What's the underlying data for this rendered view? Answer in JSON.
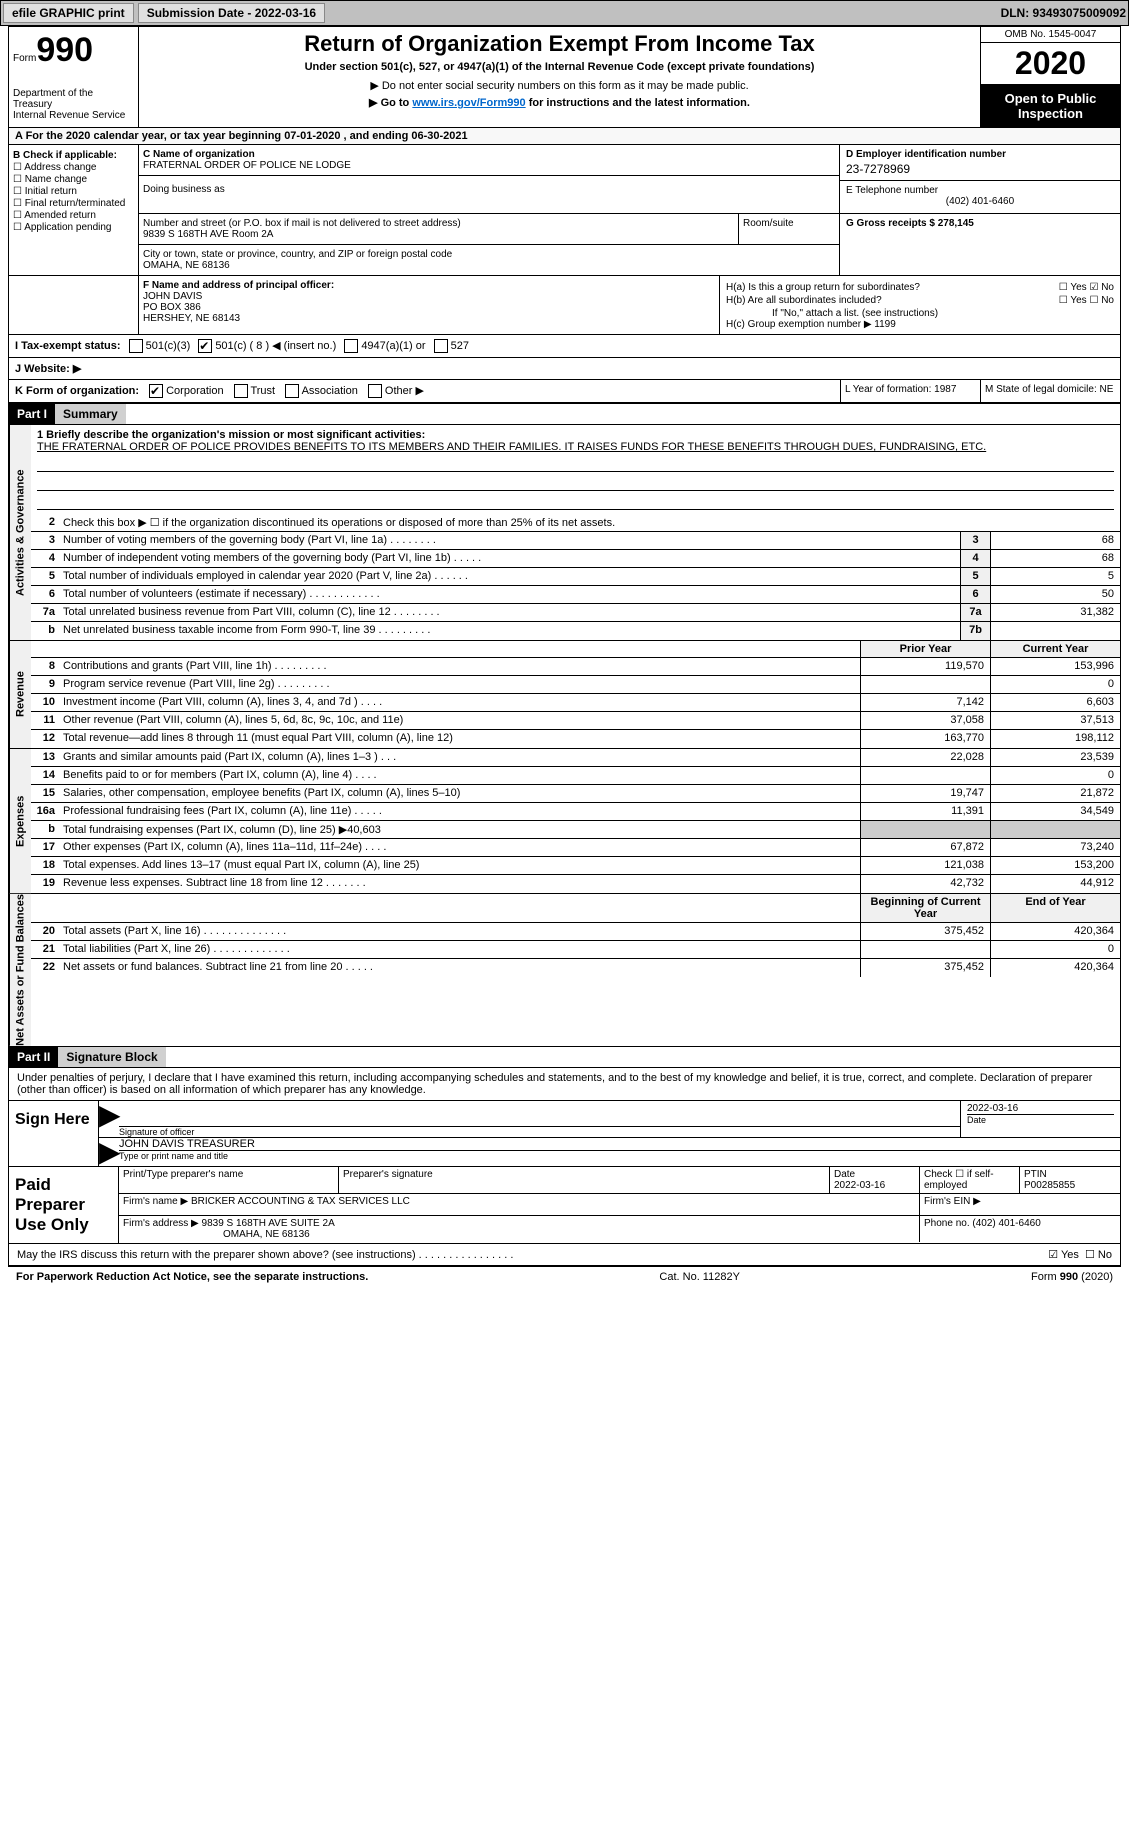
{
  "header": {
    "efile_btn": "efile GRAPHIC print",
    "submission_label": "Submission Date - 2022-03-16",
    "dln_label": "DLN: 93493075009092"
  },
  "top": {
    "form_word": "Form",
    "form_num": "990",
    "dept": "Department of the Treasury\nInternal Revenue Service",
    "title": "Return of Organization Exempt From Income Tax",
    "subtitle": "Under section 501(c), 527, or 4947(a)(1) of the Internal Revenue Code (except private foundations)",
    "instr1": "▶ Do not enter social security numbers on this form as it may be made public.",
    "instr2_pre": "▶ Go to ",
    "instr2_link": "www.irs.gov/Form990",
    "instr2_post": " for instructions and the latest information.",
    "omb": "OMB No. 1545-0047",
    "year": "2020",
    "open": "Open to Public Inspection"
  },
  "period": "A For the 2020 calendar year, or tax year beginning 07-01-2020   , and ending 06-30-2021",
  "b": {
    "hdr": "B Check if applicable:",
    "items": [
      "☐ Address change",
      "☐ Name change",
      "☐ Initial return",
      "☐ Final return/terminated",
      "☐ Amended return",
      "☐ Application pending"
    ]
  },
  "c": {
    "label": "C Name of organization",
    "name": "FRATERNAL ORDER OF POLICE NE LODGE",
    "dba_label": "Doing business as",
    "addr_label": "Number and street (or P.O. box if mail is not delivered to street address)",
    "addr": "9839 S 168TH AVE Room 2A",
    "room_label": "Room/suite",
    "city_label": "City or town, state or province, country, and ZIP or foreign postal code",
    "city": "OMAHA, NE  68136"
  },
  "d": {
    "label": "D Employer identification number",
    "val": "23-7278969"
  },
  "e": {
    "label": "E Telephone number",
    "val": "(402) 401-6460"
  },
  "g": {
    "label": "G Gross receipts $ 278,145"
  },
  "f": {
    "label": "F  Name and address of principal officer:",
    "name": "JOHN DAVIS",
    "addr1": "PO BOX 386",
    "addr2": "HERSHEY, NE  68143"
  },
  "h": {
    "ha": "H(a)  Is this a group return for subordinates?",
    "ha_yes": "☐ Yes",
    "ha_no": "☑ No",
    "hb": "H(b)  Are all subordinates included?",
    "hb_yes": "☐ Yes",
    "hb_no": "☐ No",
    "hb_note": "If \"No,\" attach a list. (see instructions)",
    "hc": "H(c)  Group exemption number ▶   1199"
  },
  "i": {
    "label": "I    Tax-exempt status:",
    "opts": [
      "501(c)(3)",
      "501(c) ( 8 ) ◀ (insert no.)",
      "4947(a)(1) or",
      "527"
    ],
    "checked_idx": 1
  },
  "j": {
    "label": "J    Website: ▶"
  },
  "k": {
    "label": "K Form of organization:",
    "opts": [
      "Corporation",
      "Trust",
      "Association",
      "Other ▶"
    ],
    "checked_idx": 0,
    "l": "L Year of formation: 1987",
    "m": "M State of legal domicile: NE"
  },
  "part1": {
    "hdr": "Part I",
    "title": "Summary",
    "line1_label": "1  Briefly describe the organization's mission or most significant activities:",
    "line1_text": "THE FRATERNAL ORDER OF POLICE PROVIDES BENEFITS TO ITS MEMBERS AND THEIR FAMILIES. IT RAISES FUNDS FOR THESE BENEFITS THROUGH DUES, FUNDRAISING, ETC.",
    "line2": "Check this box ▶ ☐ if the organization discontinued its operations or disposed of more than 25% of its net assets.",
    "governance_label": "Activities & Governance",
    "revenue_label": "Revenue",
    "expenses_label": "Expenses",
    "netassets_label": "Net Assets or Fund Balances",
    "gov_lines": [
      {
        "n": "3",
        "d": "Number of voting members of the governing body (Part VI, line 1a)  .    .    .    .    .    .    .    .",
        "b": "3",
        "v": "68"
      },
      {
        "n": "4",
        "d": "Number of independent voting members of the governing body (Part VI, line 1b)   .    .    .    .    .",
        "b": "4",
        "v": "68"
      },
      {
        "n": "5",
        "d": "Total number of individuals employed in calendar year 2020 (Part V, line 2a)   .    .    .    .    .    .",
        "b": "5",
        "v": "5"
      },
      {
        "n": "6",
        "d": "Total number of volunteers (estimate if necessary)   .    .    .    .    .    .    .    .    .    .    .    .",
        "b": "6",
        "v": "50"
      },
      {
        "n": "7a",
        "d": "Total unrelated business revenue from Part VIII, column (C), line 12   .    .    .    .    .    .    .    .",
        "b": "7a",
        "v": "31,382"
      },
      {
        "n": "b",
        "d": "Net unrelated business taxable income from Form 990-T, line 39   .    .    .    .    .    .    .    .    .",
        "b": "7b",
        "v": ""
      }
    ],
    "col_prior": "Prior Year",
    "col_current": "Current Year",
    "rev_lines": [
      {
        "n": "8",
        "d": "Contributions and grants (Part VIII, line 1h)   .    .    .    .    .    .    .    .    .",
        "p": "119,570",
        "c": "153,996"
      },
      {
        "n": "9",
        "d": "Program service revenue (Part VIII, line 2g)   .    .    .    .    .    .    .    .    .",
        "p": "",
        "c": "0"
      },
      {
        "n": "10",
        "d": "Investment income (Part VIII, column (A), lines 3, 4, and 7d )   .    .    .    .",
        "p": "7,142",
        "c": "6,603"
      },
      {
        "n": "11",
        "d": "Other revenue (Part VIII, column (A), lines 5, 6d, 8c, 9c, 10c, and 11e)",
        "p": "37,058",
        "c": "37,513"
      },
      {
        "n": "12",
        "d": "Total revenue—add lines 8 through 11 (must equal Part VIII, column (A), line 12)",
        "p": "163,770",
        "c": "198,112"
      }
    ],
    "exp_lines": [
      {
        "n": "13",
        "d": "Grants and similar amounts paid (Part IX, column (A), lines 1–3 )   .    .    .",
        "p": "22,028",
        "c": "23,539"
      },
      {
        "n": "14",
        "d": "Benefits paid to or for members (Part IX, column (A), line 4)   .    .    .    .",
        "p": "",
        "c": "0"
      },
      {
        "n": "15",
        "d": "Salaries, other compensation, employee benefits (Part IX, column (A), lines 5–10)",
        "p": "19,747",
        "c": "21,872"
      },
      {
        "n": "16a",
        "d": "Professional fundraising fees (Part IX, column (A), line 11e)   .    .    .    .    .",
        "p": "11,391",
        "c": "34,549"
      },
      {
        "n": "b",
        "d": "Total fundraising expenses (Part IX, column (D), line 25) ▶40,603",
        "p": "__SHADE__",
        "c": "__SHADE__"
      },
      {
        "n": "17",
        "d": "Other expenses (Part IX, column (A), lines 11a–11d, 11f–24e)   .    .    .    .",
        "p": "67,872",
        "c": "73,240"
      },
      {
        "n": "18",
        "d": "Total expenses. Add lines 13–17 (must equal Part IX, column (A), line 25)",
        "p": "121,038",
        "c": "153,200"
      },
      {
        "n": "19",
        "d": "Revenue less expenses. Subtract line 18 from line 12   .    .    .    .    .    .    .",
        "p": "42,732",
        "c": "44,912"
      }
    ],
    "net_header_p": "Beginning of Current Year",
    "net_header_c": "End of Year",
    "net_lines": [
      {
        "n": "20",
        "d": "Total assets (Part X, line 16)   .    .    .    .    .    .    .    .    .    .    .    .    .    .",
        "p": "375,452",
        "c": "420,364"
      },
      {
        "n": "21",
        "d": "Total liabilities (Part X, line 26)   .    .    .    .    .    .    .    .    .    .    .    .    .",
        "p": "",
        "c": "0"
      },
      {
        "n": "22",
        "d": "Net assets or fund balances. Subtract line 21 from line 20   .    .    .    .    .",
        "p": "375,452",
        "c": "420,364"
      }
    ]
  },
  "part2": {
    "hdr": "Part II",
    "title": "Signature Block",
    "intro": "Under penalties of perjury, I declare that I have examined this return, including accompanying schedules and statements, and to the best of my knowledge and belief, it is true, correct, and complete. Declaration of preparer (other than officer) is based on all information of which preparer has any knowledge.",
    "sign_here": "Sign Here",
    "sig_officer_lbl": "Signature of officer",
    "sig_date": "2022-03-16",
    "date_lbl": "Date",
    "name_title": "JOHN DAVIS TREASURER",
    "name_title_lbl": "Type or print name and title",
    "paid_label": "Paid Preparer Use Only",
    "prep_headers": [
      "Print/Type preparer's name",
      "Preparer's signature",
      "Date",
      "Check ☐ if self-employed",
      "PTIN"
    ],
    "prep_vals": [
      "",
      "",
      "2022-03-16",
      "",
      "P00285855"
    ],
    "firm_name_lbl": "Firm's name    ▶",
    "firm_name": "BRICKER ACCOUNTING & TAX SERVICES LLC",
    "firm_ein_lbl": "Firm's EIN ▶",
    "firm_addr_lbl": "Firm's address ▶",
    "firm_addr": "9839 S 168TH AVE SUITE 2A",
    "firm_city": "OMAHA, NE  68136",
    "phone_lbl": "Phone no. (402) 401-6460",
    "discuss": "May the IRS discuss this return with the preparer shown above? (see instructions)   .    .    .    .    .    .    .    .    .    .    .    .    .    .    .    .",
    "discuss_yes": "☑ Yes",
    "discuss_no": "☐ No"
  },
  "footer": {
    "left": "For Paperwork Reduction Act Notice, see the separate instructions.",
    "mid": "Cat. No. 11282Y",
    "right": "Form 990 (2020)"
  }
}
